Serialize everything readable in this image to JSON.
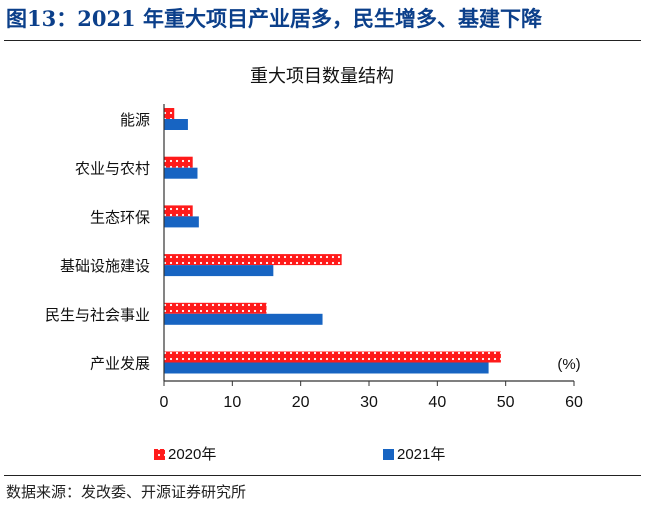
{
  "figure_title": "图13：2021 年重大项目产业居多，民生增多、基建下降",
  "source_note": "数据来源：发改委、开源证券研究所",
  "chart_data": {
    "type": "bar",
    "orientation": "horizontal",
    "title": "重大项目数量结构",
    "unit_label": "(%)",
    "categories": [
      "能源",
      "农业与农村",
      "生态环保",
      "基础设施建设",
      "民生与社会事业",
      "产业发展"
    ],
    "series": [
      {
        "name": "2020年",
        "values": [
          1.5,
          4.2,
          4.2,
          26.0,
          15.0,
          49.3
        ],
        "color": "#ff1a1a",
        "pattern": "white-dots"
      },
      {
        "name": "2021年",
        "values": [
          3.5,
          4.9,
          5.1,
          16.0,
          23.2,
          47.5
        ],
        "color": "#1764c2"
      }
    ],
    "xlim": [
      0,
      60
    ],
    "xticks": [
      0,
      10,
      20,
      30,
      40,
      50,
      60
    ],
    "grid": false,
    "legend_position": "bottom"
  }
}
